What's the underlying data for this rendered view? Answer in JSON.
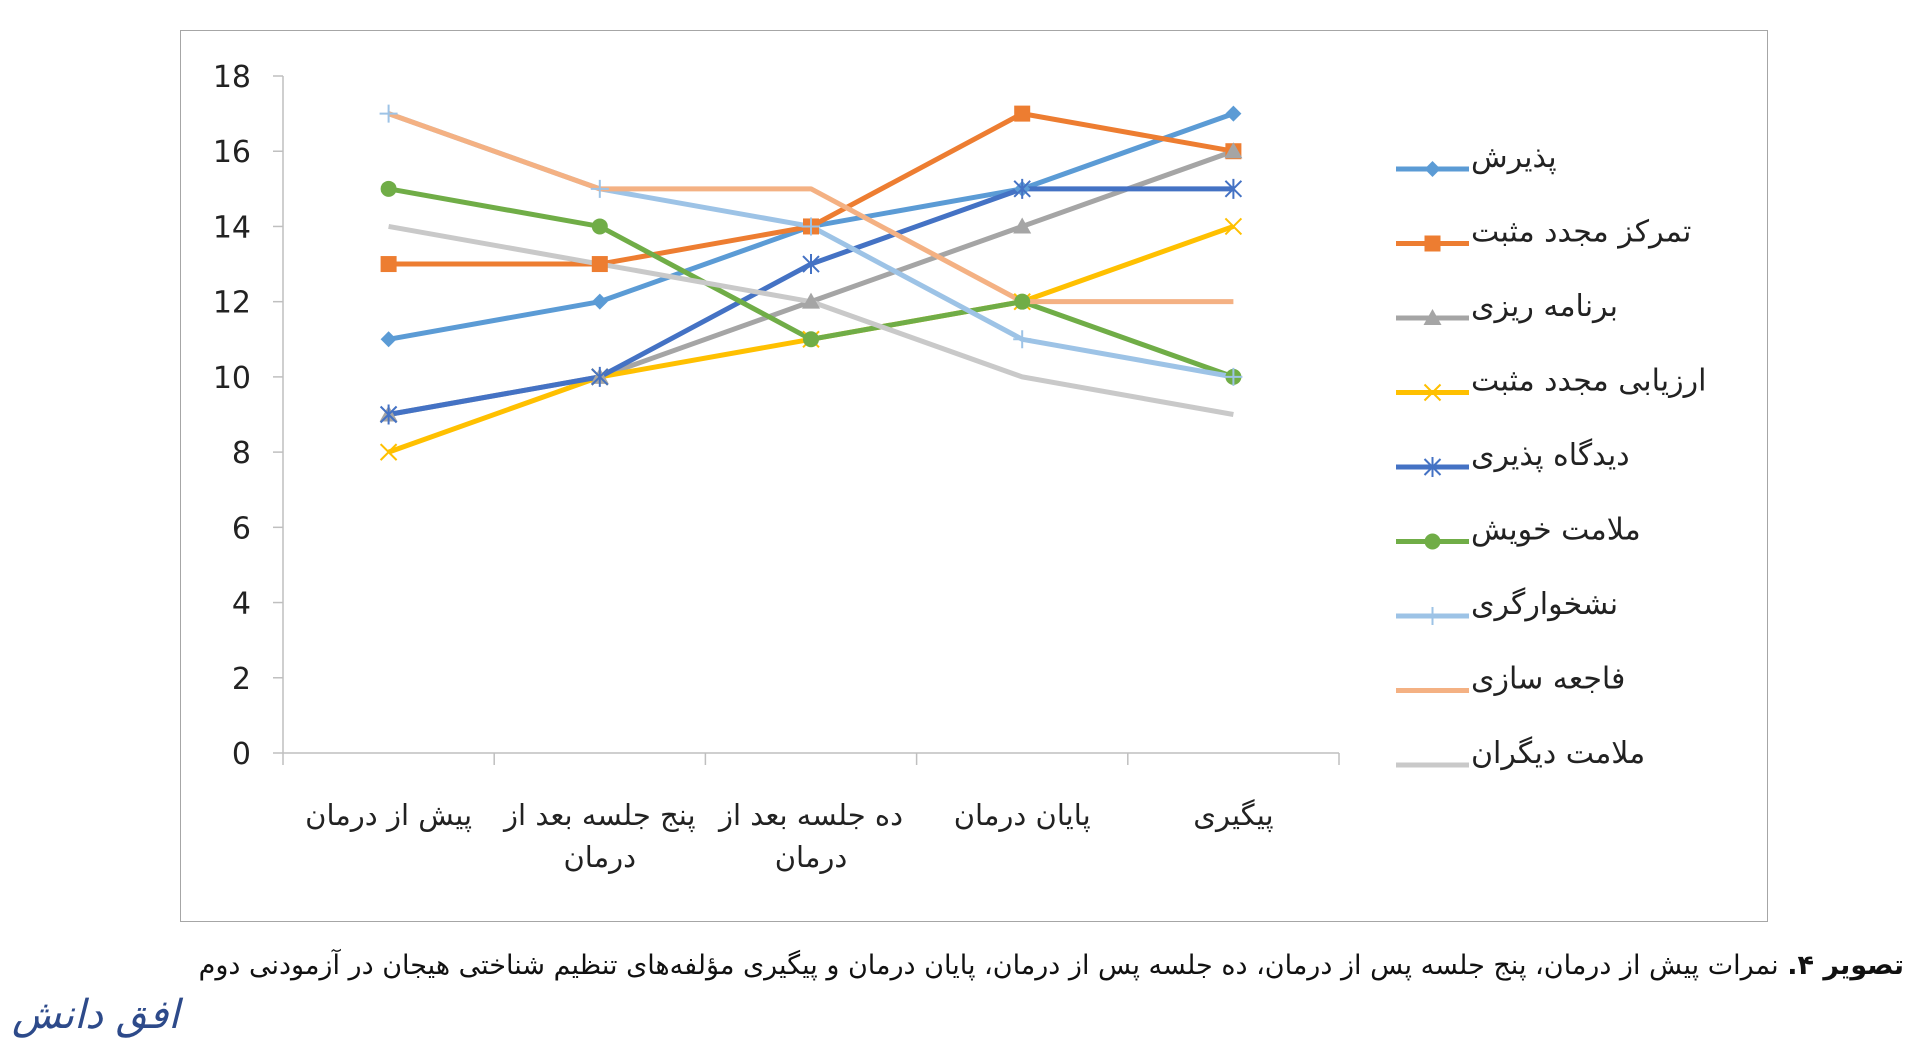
{
  "chart_data": {
    "type": "line",
    "categories": [
      "پیش از درمان",
      "پنج جلسه بعد از درمان",
      "ده جلسه بعد از درمان",
      "پایان درمان",
      "پیگیری"
    ],
    "ylim": [
      0,
      18
    ],
    "yticks": [
      0,
      2,
      4,
      6,
      8,
      10,
      12,
      14,
      16,
      18
    ],
    "legend_position": "right",
    "grid": false,
    "series": [
      {
        "name": "پذیرش",
        "color": "#5b9bd5",
        "marker": "diamond",
        "values": [
          11,
          12,
          14,
          15,
          17
        ]
      },
      {
        "name": "تمرکز مجدد مثبت",
        "color": "#ed7d31",
        "marker": "square",
        "values": [
          13,
          13,
          14,
          17,
          16
        ]
      },
      {
        "name": "برنامه ریزی",
        "color": "#a5a5a5",
        "marker": "triangle",
        "values": [
          9,
          10,
          12,
          14,
          16
        ]
      },
      {
        "name": "ارزیابی مجدد مثبت",
        "color": "#ffc000",
        "marker": "x",
        "values": [
          8,
          10,
          11,
          12,
          14
        ]
      },
      {
        "name": "دیدگاه پذیری",
        "color": "#4472c4",
        "marker": "star",
        "values": [
          9,
          10,
          13,
          15,
          15
        ]
      },
      {
        "name": "ملامت خویش",
        "color": "#70ad47",
        "marker": "circle",
        "values": [
          15,
          14,
          11,
          12,
          10
        ]
      },
      {
        "name": "نشخوارگری",
        "color": "#9dc3e6",
        "marker": "plus",
        "values": [
          17,
          15,
          14,
          11,
          10
        ]
      },
      {
        "name": "فاجعه سازی",
        "color": "#f4b183",
        "marker": "none",
        "values": [
          17,
          15,
          15,
          12,
          12
        ]
      },
      {
        "name": "ملامت دیگران",
        "color": "#c9c9c9",
        "marker": "none",
        "values": [
          14,
          13,
          12,
          10,
          9
        ]
      }
    ]
  },
  "caption": {
    "label": "تصویر ۴.",
    "text": " نمرات پیش از درمان، پنج جلسه پس از درمان، ده جلسه پس از درمان، پایان درمان و پیگیری مؤلفه‌های تنظیم شناختی هیجان در آزمودنی دوم"
  },
  "logo_text": "افق دانش"
}
